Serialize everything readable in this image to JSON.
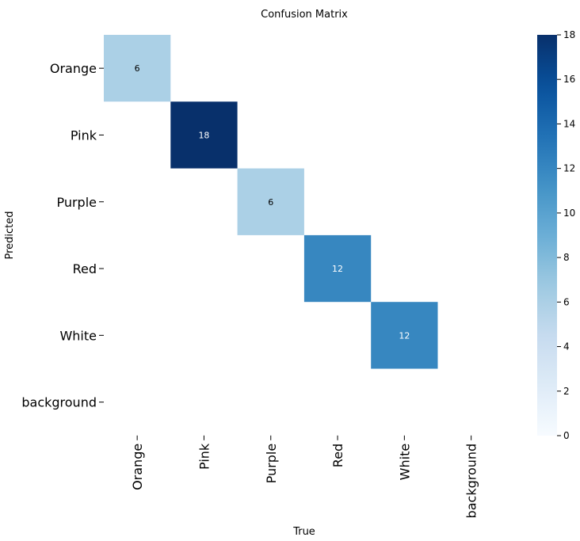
{
  "chart_data": {
    "type": "heatmap",
    "title": "Confusion Matrix",
    "xlabel": "True",
    "ylabel": "Predicted",
    "x_categories": [
      "Orange",
      "Pink",
      "Purple",
      "Red",
      "White",
      "background"
    ],
    "y_categories": [
      "Orange",
      "Pink",
      "Purple",
      "Red",
      "White",
      "background"
    ],
    "cells": [
      {
        "row": 0,
        "col": 0,
        "value": 6
      },
      {
        "row": 1,
        "col": 1,
        "value": 18
      },
      {
        "row": 2,
        "col": 2,
        "value": 6
      },
      {
        "row": 3,
        "col": 3,
        "value": 12
      },
      {
        "row": 4,
        "col": 4,
        "value": 12
      }
    ],
    "colormap": "Blues",
    "colorbar": {
      "range": [
        0,
        18
      ],
      "ticks": [
        0,
        2,
        4,
        6,
        8,
        10,
        12,
        14,
        16,
        18
      ]
    }
  }
}
